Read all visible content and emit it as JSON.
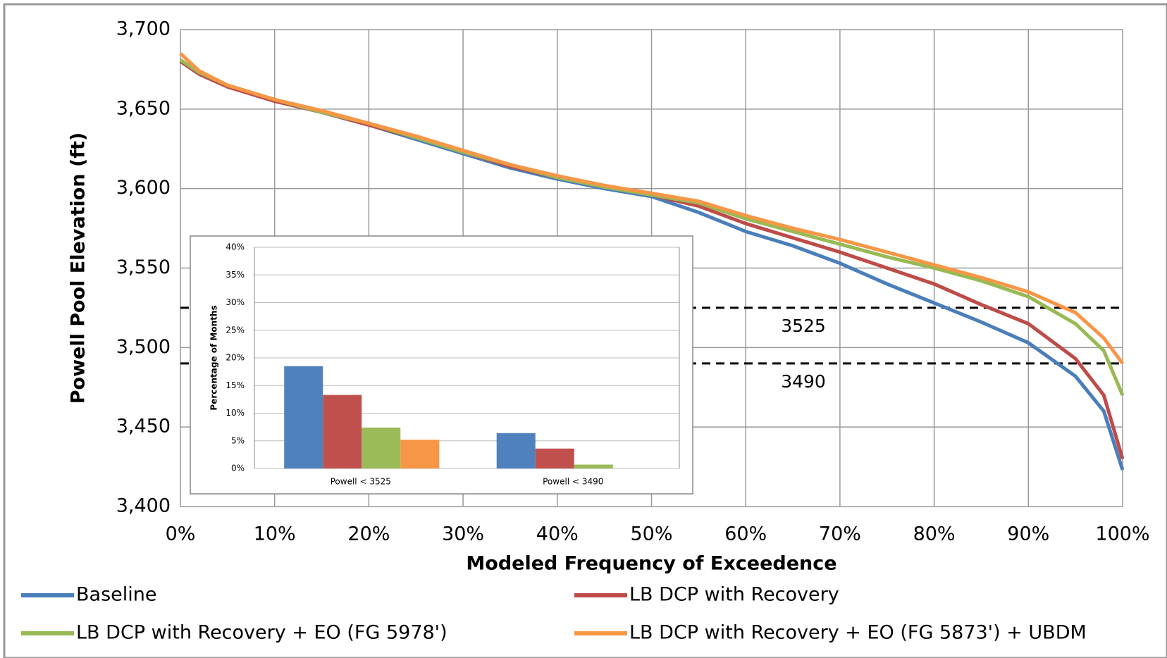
{
  "chart_data": [
    {
      "type": "line",
      "xlabel": "Modeled Frequency of Exceedence",
      "ylabel": "Powell Pool Elevation (ft)",
      "x": [
        0,
        2,
        5,
        10,
        15,
        20,
        25,
        30,
        35,
        40,
        45,
        50,
        55,
        60,
        65,
        70,
        75,
        80,
        85,
        90,
        95,
        98,
        100
      ],
      "series": [
        {
          "name": "Baseline",
          "color": "#4a7ebb",
          "values": [
            3680,
            3672,
            3664,
            3655,
            3648,
            3640,
            3631,
            3622,
            3613,
            3606,
            3600,
            3595,
            3585,
            3573,
            3564,
            3553,
            3540,
            3528,
            3516,
            3503,
            3482,
            3460,
            3423
          ]
        },
        {
          "name": "LB DCP with Recovery",
          "color": "#be4b48",
          "values": [
            3680,
            3672,
            3664,
            3655,
            3648,
            3640,
            3632,
            3623,
            3614,
            3607,
            3601,
            3596,
            3589,
            3578,
            3569,
            3560,
            3550,
            3540,
            3527,
            3515,
            3493,
            3470,
            3430
          ]
        },
        {
          "name": "LB DCP with Recovery + EO (FG 5978')",
          "color": "#98b954",
          "values": [
            3681,
            3673,
            3665,
            3656,
            3648,
            3641,
            3632,
            3623,
            3615,
            3607,
            3601,
            3596,
            3591,
            3581,
            3573,
            3565,
            3557,
            3550,
            3542,
            3532,
            3515,
            3498,
            3470
          ]
        },
        {
          "name": "LB DCP with Recovery + EO (FG 5873') + UBDM",
          "color": "#f79646",
          "values": [
            3685,
            3674,
            3665,
            3656,
            3649,
            3641,
            3633,
            3624,
            3615,
            3608,
            3602,
            3597,
            3592,
            3583,
            3575,
            3568,
            3560,
            3552,
            3544,
            3535,
            3522,
            3506,
            3490
          ]
        }
      ],
      "xlim": [
        0,
        100
      ],
      "ylim": [
        3400,
        3700
      ],
      "xticks": [
        {
          "value": 0,
          "label": "0%"
        },
        {
          "value": 10,
          "label": "10%"
        },
        {
          "value": 20,
          "label": "20%"
        },
        {
          "value": 30,
          "label": "30%"
        },
        {
          "value": 40,
          "label": "40%"
        },
        {
          "value": 50,
          "label": "50%"
        },
        {
          "value": 60,
          "label": "60%"
        },
        {
          "value": 70,
          "label": "70%"
        },
        {
          "value": 80,
          "label": "80%"
        },
        {
          "value": 90,
          "label": "90%"
        },
        {
          "value": 100,
          "label": "100%"
        }
      ],
      "yticks": [
        {
          "value": 3400,
          "label": "3,400"
        },
        {
          "value": 3450,
          "label": "3,450"
        },
        {
          "value": 3500,
          "label": "3,500"
        },
        {
          "value": 3550,
          "label": "3,550"
        },
        {
          "value": 3600,
          "label": "3,600"
        },
        {
          "value": 3650,
          "label": "3,650"
        },
        {
          "value": 3700,
          "label": "3,700"
        }
      ],
      "grid": true,
      "legend": "bottom",
      "reference_lines": [
        {
          "value": 3525,
          "label": "3525"
        },
        {
          "value": 3490,
          "label": "3490"
        }
      ]
    },
    {
      "type": "bar",
      "ylabel": "Percentage of Months",
      "categories": [
        "Powell < 3525",
        "Powell < 3490"
      ],
      "series": [
        {
          "color": "#4f81bd",
          "values": [
            18.5,
            6.4
          ]
        },
        {
          "color": "#c0504d",
          "values": [
            13.3,
            3.6
          ]
        },
        {
          "color": "#9bbb59",
          "values": [
            7.4,
            0.7
          ]
        },
        {
          "color": "#f79646",
          "values": [
            5.2,
            0
          ]
        }
      ],
      "ylim": [
        0,
        40
      ],
      "yticks": [
        {
          "value": 0,
          "label": "0%"
        },
        {
          "value": 5,
          "label": "5%"
        },
        {
          "value": 10,
          "label": "10%"
        },
        {
          "value": 15,
          "label": "15%"
        },
        {
          "value": 20,
          "label": "20%"
        },
        {
          "value": 25,
          "label": "25%"
        },
        {
          "value": 30,
          "label": "30%"
        },
        {
          "value": 35,
          "label": "35%"
        },
        {
          "value": 40,
          "label": "40%"
        }
      ],
      "grid": true
    }
  ]
}
